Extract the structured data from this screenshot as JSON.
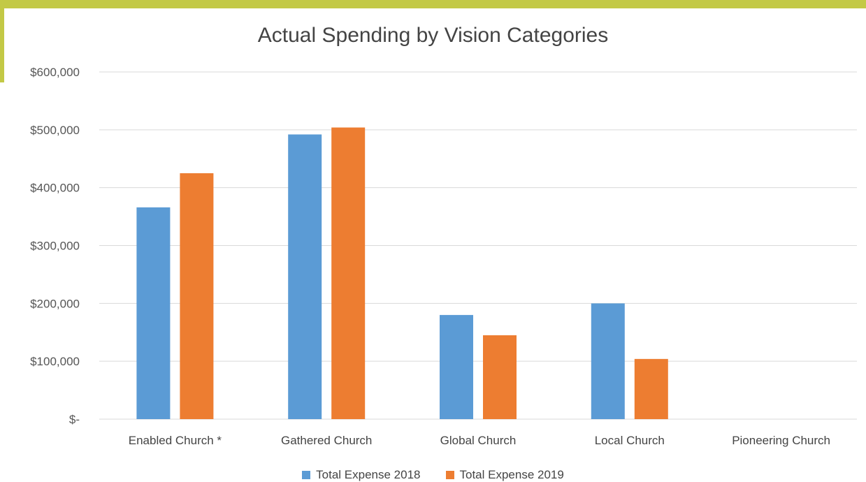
{
  "colors": {
    "accent_frame": "#c3c946",
    "series_2018": "#5b9bd5",
    "series_2019": "#ed7d31",
    "gridline": "#d9d9d9"
  },
  "chart_data": {
    "type": "bar",
    "title": "Actual Spending by Vision Categories",
    "xlabel": "",
    "ylabel": "",
    "ylim": [
      0,
      600000
    ],
    "y_ticks": [
      0,
      100000,
      200000,
      300000,
      400000,
      500000,
      600000
    ],
    "y_tick_labels": [
      "$-",
      "$100,000",
      "$200,000",
      "$300,000",
      "$400,000",
      "$500,000",
      "$600,000"
    ],
    "grid": true,
    "legend_position": "bottom",
    "categories": [
      "Enabled Church *",
      "Gathered Church",
      "Global Church",
      "Local Church",
      "Pioneering Church"
    ],
    "series": [
      {
        "name": "Total Expense 2018",
        "color": "#5b9bd5",
        "values": [
          366000,
          492000,
          180000,
          200000,
          0
        ]
      },
      {
        "name": "Total Expense 2019",
        "color": "#ed7d31",
        "values": [
          425000,
          504000,
          145000,
          104000,
          0
        ]
      }
    ]
  }
}
